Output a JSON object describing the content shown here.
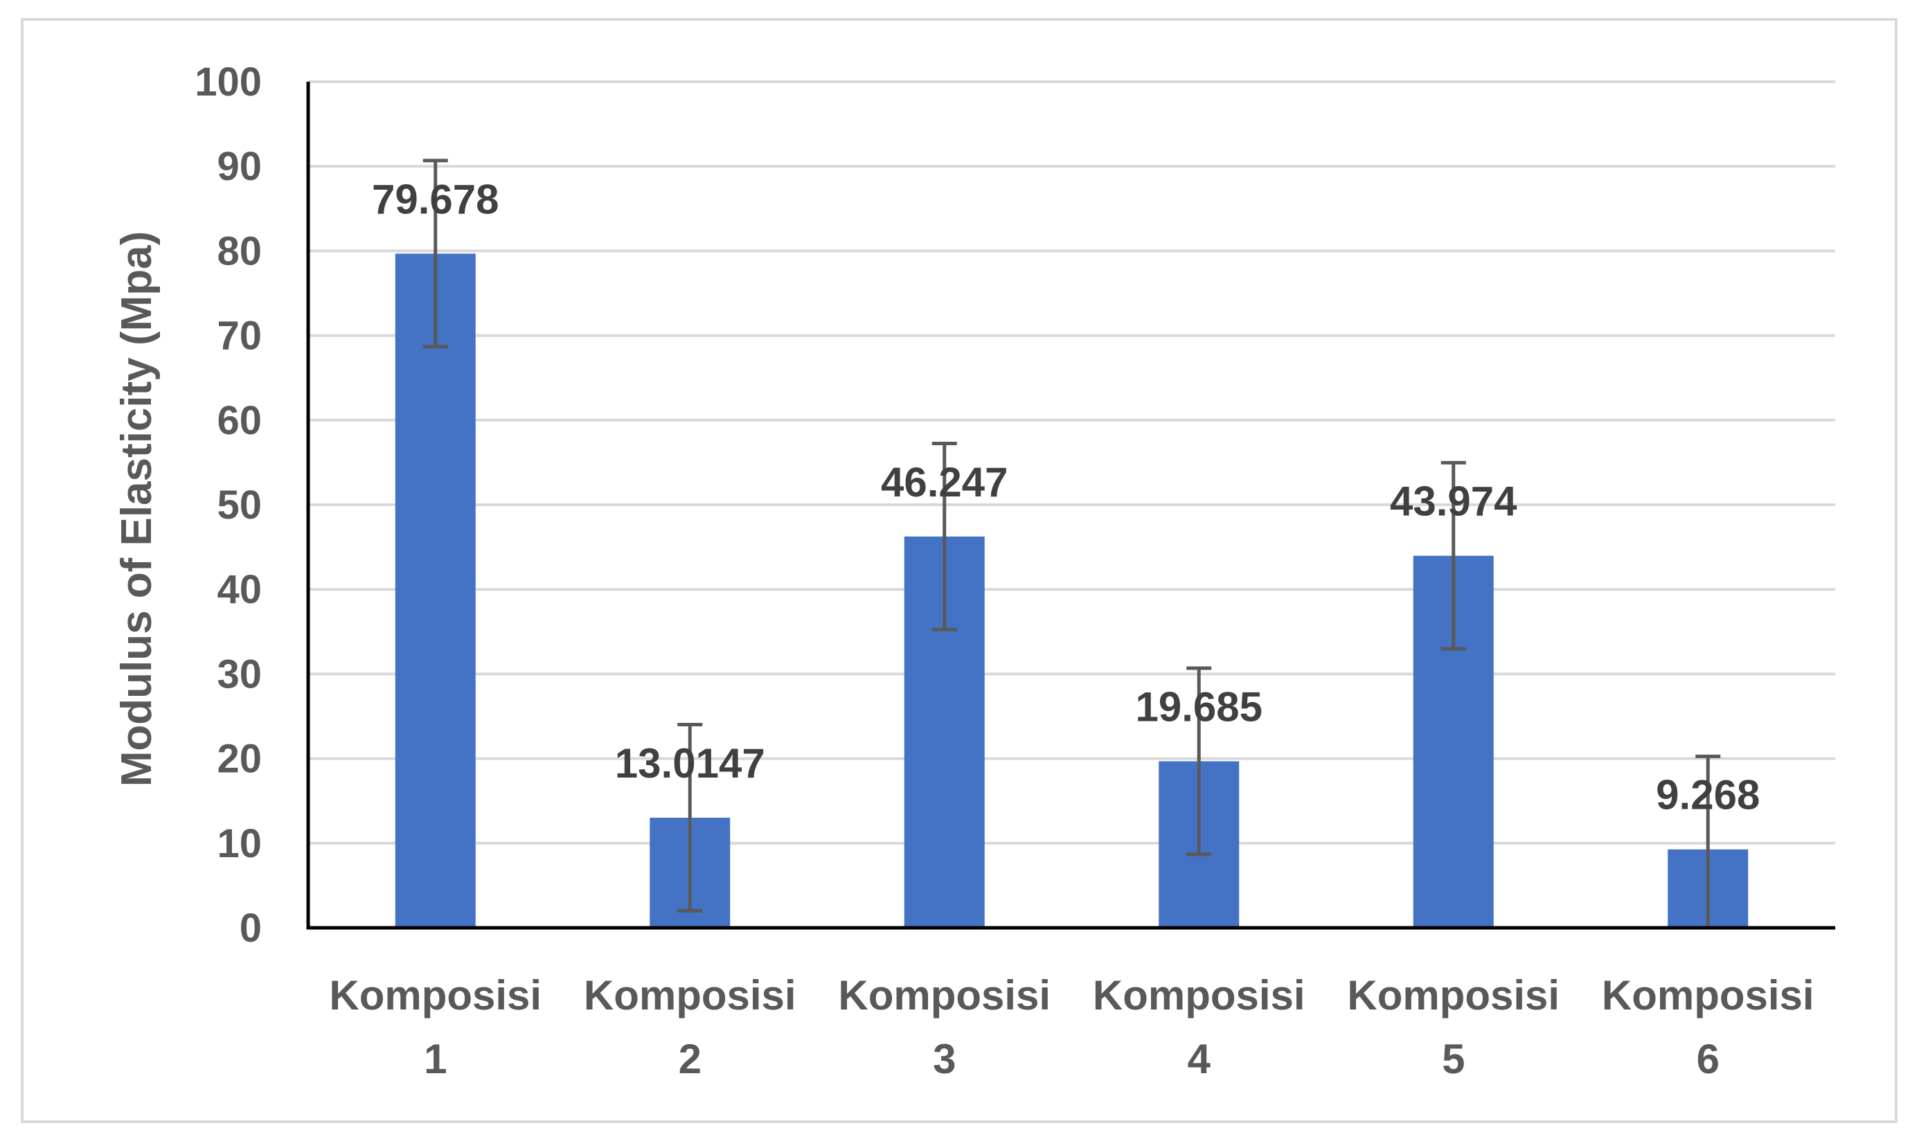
{
  "chart_data": {
    "type": "bar",
    "categories": [
      [
        "Komposisi",
        "1"
      ],
      [
        "Komposisi",
        "2"
      ],
      [
        "Komposisi",
        "3"
      ],
      [
        "Komposisi",
        "4"
      ],
      [
        "Komposisi",
        "5"
      ],
      [
        "Komposisi",
        "6"
      ]
    ],
    "values": [
      79.678,
      13.0147,
      46.247,
      19.685,
      43.974,
      9.268
    ],
    "data_labels": [
      "79.678",
      "13.0147",
      "46.247",
      "19.685",
      "43.974",
      "9.268"
    ],
    "error_bars": [
      11,
      11,
      11,
      11,
      11,
      11
    ],
    "xlabel": "",
    "ylabel": "Modulus of Elasticity (Mpa)",
    "ylim": [
      0,
      100
    ],
    "yticks": [
      0,
      10,
      20,
      30,
      40,
      50,
      60,
      70,
      80,
      90,
      100
    ],
    "grid": true,
    "legend": "none",
    "colors": {
      "bar": "#4472c4",
      "gridline": "#d9d9d9",
      "axis": "#000000",
      "error_bar": "#595959",
      "tick_text": "#595959",
      "data_label_text": "#404040"
    }
  }
}
